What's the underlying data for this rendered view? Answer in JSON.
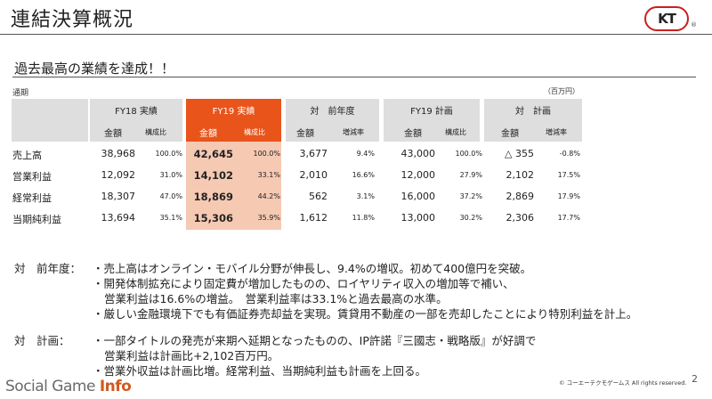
{
  "header": {
    "title": "連結決算概況",
    "logo_text": "KT",
    "logo_mark": "®",
    "logo_icon": "koei-tecmo-logo-icon"
  },
  "subtitle": "過去最高の業績を達成！！",
  "table": {
    "period_label": "通期",
    "unit_label": "（百万円）",
    "groups": [
      {
        "label": "FY18 実績",
        "col1": "金額",
        "col2": "構成比"
      },
      {
        "label": "FY19 実績",
        "col1": "金額",
        "col2": "構成比"
      },
      {
        "label": "対　前年度",
        "col1": "金額",
        "col2": "増減率"
      },
      {
        "label": "FY19 計画",
        "col1": "金額",
        "col2": "構成比"
      },
      {
        "label": "対　計画",
        "col1": "金額",
        "col2": "増減率"
      }
    ],
    "accent_color": "#e8541a",
    "highlight_color": "#f6c9b3",
    "rows": [
      {
        "label": "売上高",
        "cells": [
          "38,968",
          "100.0%",
          "42,645",
          "100.0%",
          "3,677",
          "9.4%",
          "43,000",
          "100.0%",
          "△ 355",
          "-0.8%"
        ]
      },
      {
        "label": "営業利益",
        "cells": [
          "12,092",
          "31.0%",
          "14,102",
          "33.1%",
          "2,010",
          "16.6%",
          "12,000",
          "27.9%",
          "2,102",
          "17.5%"
        ]
      },
      {
        "label": "経常利益",
        "cells": [
          "18,307",
          "47.0%",
          "18,869",
          "44.2%",
          "562",
          "3.1%",
          "16,000",
          "37.2%",
          "2,869",
          "17.9%"
        ]
      },
      {
        "label": "当期純利益",
        "cells": [
          "13,694",
          "35.1%",
          "15,306",
          "35.9%",
          "1,612",
          "11.8%",
          "13,000",
          "30.2%",
          "2,306",
          "17.7%"
        ]
      }
    ]
  },
  "notes": {
    "prior_year_label": "対　前年度：",
    "prior_year": [
      "・売上高はオンライン・モバイル分野が伸長し、9.4%の増収。初めて400億円を突破。",
      "・開発体制拡充により固定費が増加したものの、ロイヤリティ収入の増加等で補い、",
      "営業利益は16.6%の増益。　営業利益率は33.1%と過去最高の水準。",
      "・厳しい金融環境下でも有価証券売却益を実現。賃貸用不動産の一部を売却したことにより特別利益を計上。"
    ],
    "plan_label": "対　計画：",
    "plan": [
      "・一部タイトルの発売が来期へ延期となったものの、IP許諾『三國志・戦略版』が好調で",
      "営業利益は計画比+2,102百万円。",
      "・営業外収益は計画比増。経常利益、当期純利益も計画を上回る。"
    ]
  },
  "footer": {
    "brand_main": "Social Game ",
    "brand_accent": "Info",
    "copyright": "© コーエーテクモゲームス All rights reserved.",
    "page_number": "2"
  }
}
